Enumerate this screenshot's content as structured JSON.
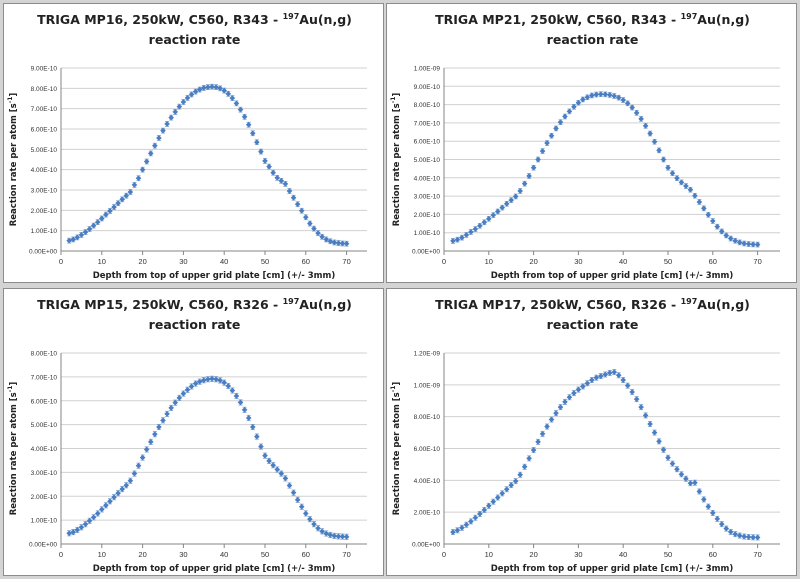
{
  "chart_data": [
    {
      "type": "scatter",
      "title_prefix": "TRIGA MP16, 250kW, C560, R343 - ",
      "title_sup": "197",
      "title_suffix": "Au(n,g)",
      "title_line2": "reaction rate",
      "xlabel": "Depth from top of upper grid plate [cm] (+/- 3mm)",
      "ylabel": "Reaction rate per atom [s",
      "ylabel_sup": "-1",
      "ylabel_end": "]",
      "xlim": [
        0,
        75
      ],
      "ylim": [
        0,
        9e-10
      ],
      "x_ticks": [
        "0",
        "10",
        "20",
        "30",
        "40",
        "50",
        "60",
        "70"
      ],
      "y_ticks": [
        "0.00E+00",
        "1.00E-10",
        "2.00E-10",
        "3.00E-10",
        "4.00E-10",
        "5.00E-10",
        "6.00E-10",
        "7.00E-10",
        "8.00E-10",
        "9.00E-10"
      ],
      "grid": true,
      "marker_color": "#4a7ec2",
      "x": [
        2,
        3,
        4,
        5,
        6,
        7,
        8,
        9,
        10,
        11,
        12,
        13,
        14,
        15,
        16,
        17,
        18,
        19,
        20,
        21,
        22,
        23,
        24,
        25,
        26,
        27,
        28,
        29,
        30,
        31,
        32,
        33,
        34,
        35,
        36,
        37,
        38,
        39,
        40,
        41,
        42,
        43,
        44,
        45,
        46,
        47,
        48,
        49,
        50,
        51,
        52,
        53,
        54,
        55,
        56,
        57,
        58,
        59,
        60,
        61,
        62,
        63,
        64,
        65,
        66,
        67,
        68,
        69,
        70
      ],
      "y": [
        5.1e-11,
        5.7e-11,
        6.7e-11,
        7.9e-11,
        9.3e-11,
        1.08e-10,
        1.25e-10,
        1.42e-10,
        1.6e-10,
        1.79e-10,
        1.97e-10,
        2.16e-10,
        2.35e-10,
        2.54e-10,
        2.72e-10,
        2.9e-10,
        3.25e-10,
        3.58e-10,
        4e-10,
        4.4e-10,
        4.8e-10,
        5.18e-10,
        5.56e-10,
        5.92e-10,
        6.25e-10,
        6.56e-10,
        6.84e-10,
        7.1e-10,
        7.33e-10,
        7.53e-10,
        7.7e-10,
        7.84e-10,
        7.94e-10,
        8.02e-10,
        8.06e-10,
        8.08e-10,
        8.06e-10,
        8e-10,
        7.89e-10,
        7.73e-10,
        7.52e-10,
        7.26e-10,
        6.95e-10,
        6.6e-10,
        6.21e-10,
        5.79e-10,
        5.35e-10,
        4.89e-10,
        4.43e-10,
        4.15e-10,
        3.85e-10,
        3.6e-10,
        3.45e-10,
        3.3e-10,
        2.95e-10,
        2.62e-10,
        2.3e-10,
        1.98e-10,
        1.66e-10,
        1.35e-10,
        1.1e-10,
        8.8e-11,
        7e-11,
        5.7e-11,
        4.8e-11,
        4.2e-11,
        3.9e-11,
        3.7e-11,
        3.6e-11
      ],
      "error": 1.2e-11
    },
    {
      "type": "scatter",
      "title_prefix": "TRIGA MP21, 250kW, C560, R343 - ",
      "title_sup": "197",
      "title_suffix": "Au(n,g)",
      "title_line2": "reaction rate",
      "xlabel": "Depth from top of upper grid plate [cm] (+/- 3mm)",
      "ylabel": "Reaction rate per atom [s",
      "ylabel_sup": "-1",
      "ylabel_end": "]",
      "xlim": [
        0,
        75
      ],
      "ylim": [
        0,
        1e-09
      ],
      "x_ticks": [
        "0",
        "10",
        "20",
        "30",
        "40",
        "50",
        "60",
        "70"
      ],
      "y_ticks": [
        "0.00E+00",
        "1.00E-10",
        "2.00E-10",
        "3.00E-10",
        "4.00E-10",
        "5.00E-10",
        "6.00E-10",
        "7.00E-10",
        "8.00E-10",
        "9.00E-10",
        "1.00E-09"
      ],
      "grid": true,
      "marker_color": "#4a7ec2",
      "x": [
        2,
        3,
        4,
        5,
        6,
        7,
        8,
        9,
        10,
        11,
        12,
        13,
        14,
        15,
        16,
        17,
        18,
        19,
        20,
        21,
        22,
        23,
        24,
        25,
        26,
        27,
        28,
        29,
        30,
        31,
        32,
        33,
        34,
        35,
        36,
        37,
        38,
        39,
        40,
        41,
        42,
        43,
        44,
        45,
        46,
        47,
        48,
        49,
        50,
        51,
        52,
        53,
        54,
        55,
        56,
        57,
        58,
        59,
        60,
        61,
        62,
        63,
        64,
        65,
        66,
        67,
        68,
        69,
        70
      ],
      "y": [
        5.5e-11,
        6.2e-11,
        7.3e-11,
        8.8e-11,
        1.04e-10,
        1.2e-10,
        1.38e-10,
        1.57e-10,
        1.76e-10,
        1.96e-10,
        2.16e-10,
        2.37e-10,
        2.58e-10,
        2.78e-10,
        2.98e-10,
        3.28e-10,
        3.68e-10,
        4.1e-10,
        4.55e-10,
        5e-10,
        5.46e-10,
        5.9e-10,
        6.3e-10,
        6.7e-10,
        7.04e-10,
        7.35e-10,
        7.63e-10,
        7.88e-10,
        8.1e-10,
        8.28e-10,
        8.4e-10,
        8.5e-10,
        8.55e-10,
        8.57e-10,
        8.56e-10,
        8.53e-10,
        8.47e-10,
        8.38e-10,
        8.25e-10,
        8.07e-10,
        7.84e-10,
        7.55e-10,
        7.22e-10,
        6.84e-10,
        6.42e-10,
        5.97e-10,
        5.5e-10,
        5e-10,
        4.55e-10,
        4.25e-10,
        3.98e-10,
        3.75e-10,
        3.55e-10,
        3.35e-10,
        3.02e-10,
        2.68e-10,
        2.33e-10,
        1.98e-10,
        1.64e-10,
        1.33e-10,
        1.07e-10,
        8.5e-11,
        6.8e-11,
        5.6e-11,
        4.7e-11,
        4.1e-11,
        3.8e-11,
        3.6e-11,
        3.5e-11
      ],
      "error": 1.3e-11
    },
    {
      "type": "scatter",
      "title_prefix": "TRIGA MP15, 250kW, C560, R326 - ",
      "title_sup": "197",
      "title_suffix": "Au(n,g)",
      "title_line2": "reaction rate",
      "xlabel": "Depth from top of upper grid plate [cm] (+/- 3mm)",
      "ylabel": "Reaction rate per atom [s",
      "ylabel_sup": "-1",
      "ylabel_end": "]",
      "xlim": [
        0,
        75
      ],
      "ylim": [
        0,
        8e-10
      ],
      "x_ticks": [
        "0",
        "10",
        "20",
        "30",
        "40",
        "50",
        "60",
        "70"
      ],
      "y_ticks": [
        "0.00E+00",
        "1.00E-10",
        "2.00E-10",
        "3.00E-10",
        "4.00E-10",
        "5.00E-10",
        "6.00E-10",
        "7.00E-10",
        "8.00E-10"
      ],
      "grid": true,
      "marker_color": "#4a7ec2",
      "x": [
        2,
        3,
        4,
        5,
        6,
        7,
        8,
        9,
        10,
        11,
        12,
        13,
        14,
        15,
        16,
        17,
        18,
        19,
        20,
        21,
        22,
        23,
        24,
        25,
        26,
        27,
        28,
        29,
        30,
        31,
        32,
        33,
        34,
        35,
        36,
        37,
        38,
        39,
        40,
        41,
        42,
        43,
        44,
        45,
        46,
        47,
        48,
        49,
        50,
        51,
        52,
        53,
        54,
        55,
        56,
        57,
        58,
        59,
        60,
        61,
        62,
        63,
        64,
        65,
        66,
        67,
        68,
        69,
        70
      ],
      "y": [
        4.5e-11,
        5e-11,
        5.9e-11,
        7e-11,
        8.3e-11,
        9.7e-11,
        1.12e-10,
        1.28e-10,
        1.45e-10,
        1.62e-10,
        1.79e-10,
        1.96e-10,
        2.13e-10,
        2.3e-10,
        2.46e-10,
        2.65e-10,
        2.95e-10,
        3.28e-10,
        3.62e-10,
        3.96e-10,
        4.28e-10,
        4.6e-10,
        4.9e-10,
        5.18e-10,
        5.45e-10,
        5.7e-10,
        5.92e-10,
        6.12e-10,
        6.3e-10,
        6.46e-10,
        6.6e-10,
        6.72e-10,
        6.8e-10,
        6.86e-10,
        6.9e-10,
        6.92e-10,
        6.9e-10,
        6.85e-10,
        6.76e-10,
        6.62e-10,
        6.43e-10,
        6.2e-10,
        5.93e-10,
        5.62e-10,
        5.28e-10,
        4.9e-10,
        4.5e-10,
        4.08e-10,
        3.7e-10,
        3.48e-10,
        3.3e-10,
        3.12e-10,
        2.95e-10,
        2.75e-10,
        2.45e-10,
        2.15e-10,
        1.85e-10,
        1.56e-10,
        1.28e-10,
        1.04e-10,
        8.3e-11,
        6.6e-11,
        5.3e-11,
        4.4e-11,
        3.8e-11,
        3.4e-11,
        3.2e-11,
        3.1e-11,
        3e-11
      ],
      "error": 1.1e-11
    },
    {
      "type": "scatter",
      "title_prefix": "TRIGA MP17, 250kW, C560, R326 - ",
      "title_sup": "197",
      "title_suffix": "Au(n,g)",
      "title_line2": "reaction rate",
      "xlabel": "Depth from top of upper grid plate [cm] (+/- 3mm)",
      "ylabel": "Reaction rate per atom [s",
      "ylabel_sup": "-1",
      "ylabel_end": "]",
      "xlim": [
        0,
        75
      ],
      "ylim": [
        0,
        1.2e-09
      ],
      "x_ticks": [
        "0",
        "10",
        "20",
        "30",
        "40",
        "50",
        "60",
        "70"
      ],
      "y_ticks": [
        "0.00E+00",
        "2.00E-10",
        "4.00E-10",
        "6.00E-10",
        "8.00E-10",
        "1.00E-09",
        "1.20E-09"
      ],
      "grid": true,
      "marker_color": "#4a7ec2",
      "x": [
        2,
        3,
        4,
        5,
        6,
        7,
        8,
        9,
        10,
        11,
        12,
        13,
        14,
        15,
        16,
        17,
        18,
        19,
        20,
        21,
        22,
        23,
        24,
        25,
        26,
        27,
        28,
        29,
        30,
        31,
        32,
        33,
        34,
        35,
        36,
        37,
        38,
        39,
        40,
        41,
        42,
        43,
        44,
        45,
        46,
        47,
        48,
        49,
        50,
        51,
        52,
        53,
        54,
        55,
        56,
        57,
        58,
        59,
        60,
        61,
        62,
        63,
        64,
        65,
        66,
        67,
        68,
        69,
        70
      ],
      "y": [
        7.5e-11,
        8.6e-11,
        1.02e-10,
        1.21e-10,
        1.42e-10,
        1.65e-10,
        1.89e-10,
        2.14e-10,
        2.4e-10,
        2.66e-10,
        2.92e-10,
        3.18e-10,
        3.44e-10,
        3.7e-10,
        3.95e-10,
        4.35e-10,
        4.85e-10,
        5.38e-10,
        5.9e-10,
        6.42e-10,
        6.92e-10,
        7.38e-10,
        7.82e-10,
        8.22e-10,
        8.6e-10,
        8.93e-10,
        9.22e-10,
        9.48e-10,
        9.7e-10,
        9.9e-10,
        1.01e-09,
        1.03e-09,
        1.045e-09,
        1.055e-09,
        1.065e-09,
        1.075e-09,
        1.08e-09,
        1.06e-09,
        1.03e-09,
        9.95e-10,
        9.55e-10,
        9.1e-10,
        8.6e-10,
        8.08e-10,
        7.54e-10,
        7e-10,
        6.45e-10,
        5.92e-10,
        5.42e-10,
        5.05e-10,
        4.7e-10,
        4.38e-10,
        4.1e-10,
        3.82e-10,
        3.85e-10,
        3.3e-10,
        2.8e-10,
        2.35e-10,
        1.95e-10,
        1.58e-10,
        1.25e-10,
        9.7e-11,
        7.6e-11,
        6.2e-11,
        5.3e-11,
        4.7e-11,
        4.4e-11,
        4.2e-11,
        4.1e-11
      ],
      "error": 1.6e-11
    }
  ]
}
